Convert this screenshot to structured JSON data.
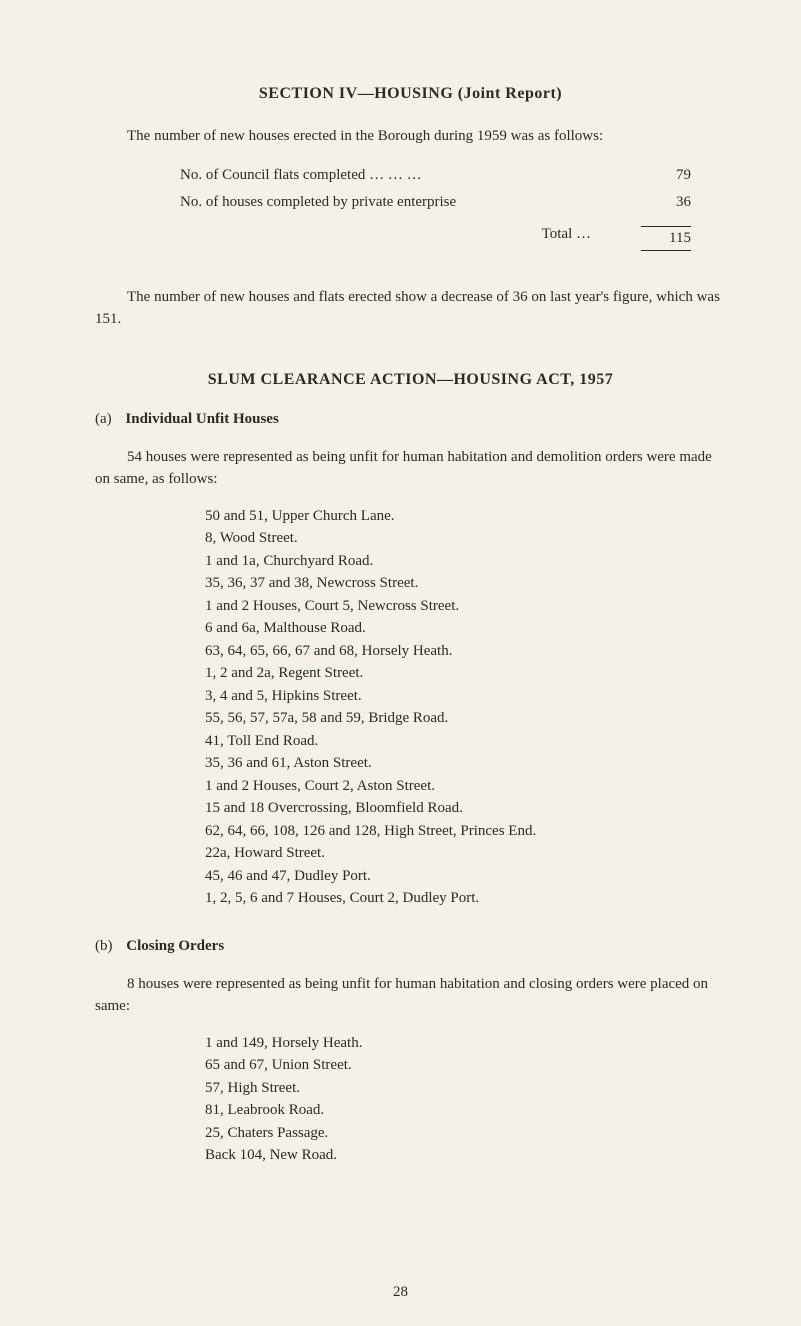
{
  "section_title": "SECTION IV—HOUSING (Joint Report)",
  "intro": "The number of new houses erected in the Borough during 1959 was as follows:",
  "stats": [
    {
      "label": "No. of Council flats completed …   …   …",
      "value": "79"
    },
    {
      "label": "No. of houses completed by private enterprise",
      "value": "36"
    }
  ],
  "total_label": "Total   …",
  "total_value": "115",
  "decrease_text": "The number of new houses and flats erected show a decrease of 36 on last year's figure, which was 151.",
  "subsection_title": "SLUM CLEARANCE ACTION—HOUSING ACT, 1957",
  "section_a": {
    "label": "(a)",
    "heading": "Individual Unfit Houses",
    "intro": "54 houses were represented as being unfit for human habitation and demolition orders were made on same, as follows:",
    "addresses": [
      "50 and 51, Upper Church Lane.",
      "8, Wood Street.",
      "1 and 1a, Churchyard Road.",
      "35, 36, 37 and 38, Newcross Street.",
      "1 and 2 Houses, Court 5, Newcross Street.",
      "6 and 6a, Malthouse Road.",
      "63, 64, 65, 66, 67 and 68, Horsely Heath.",
      "1, 2 and 2a, Regent Street.",
      "3, 4 and 5, Hipkins Street.",
      "55, 56, 57, 57a, 58 and 59, Bridge Road.",
      "41, Toll End Road.",
      "35, 36 and 61, Aston Street.",
      "1 and 2 Houses, Court 2, Aston Street.",
      "15 and 18 Overcrossing, Bloomfield Road.",
      "62, 64, 66, 108, 126 and 128, High Street, Princes End.",
      "22a, Howard Street.",
      "45, 46 and 47, Dudley Port.",
      "1, 2, 5, 6 and 7 Houses, Court 2, Dudley Port."
    ]
  },
  "section_b": {
    "label": "(b)",
    "heading": "Closing Orders",
    "intro": "8 houses were represented as being unfit for human habitation and closing orders were placed on same:",
    "addresses": [
      "1 and 149, Horsely Heath.",
      "65 and 67, Union Street.",
      "57, High Street.",
      "81, Leabrook Road.",
      "25, Chaters Passage.",
      "Back 104, New Road."
    ]
  },
  "page_number": "28"
}
